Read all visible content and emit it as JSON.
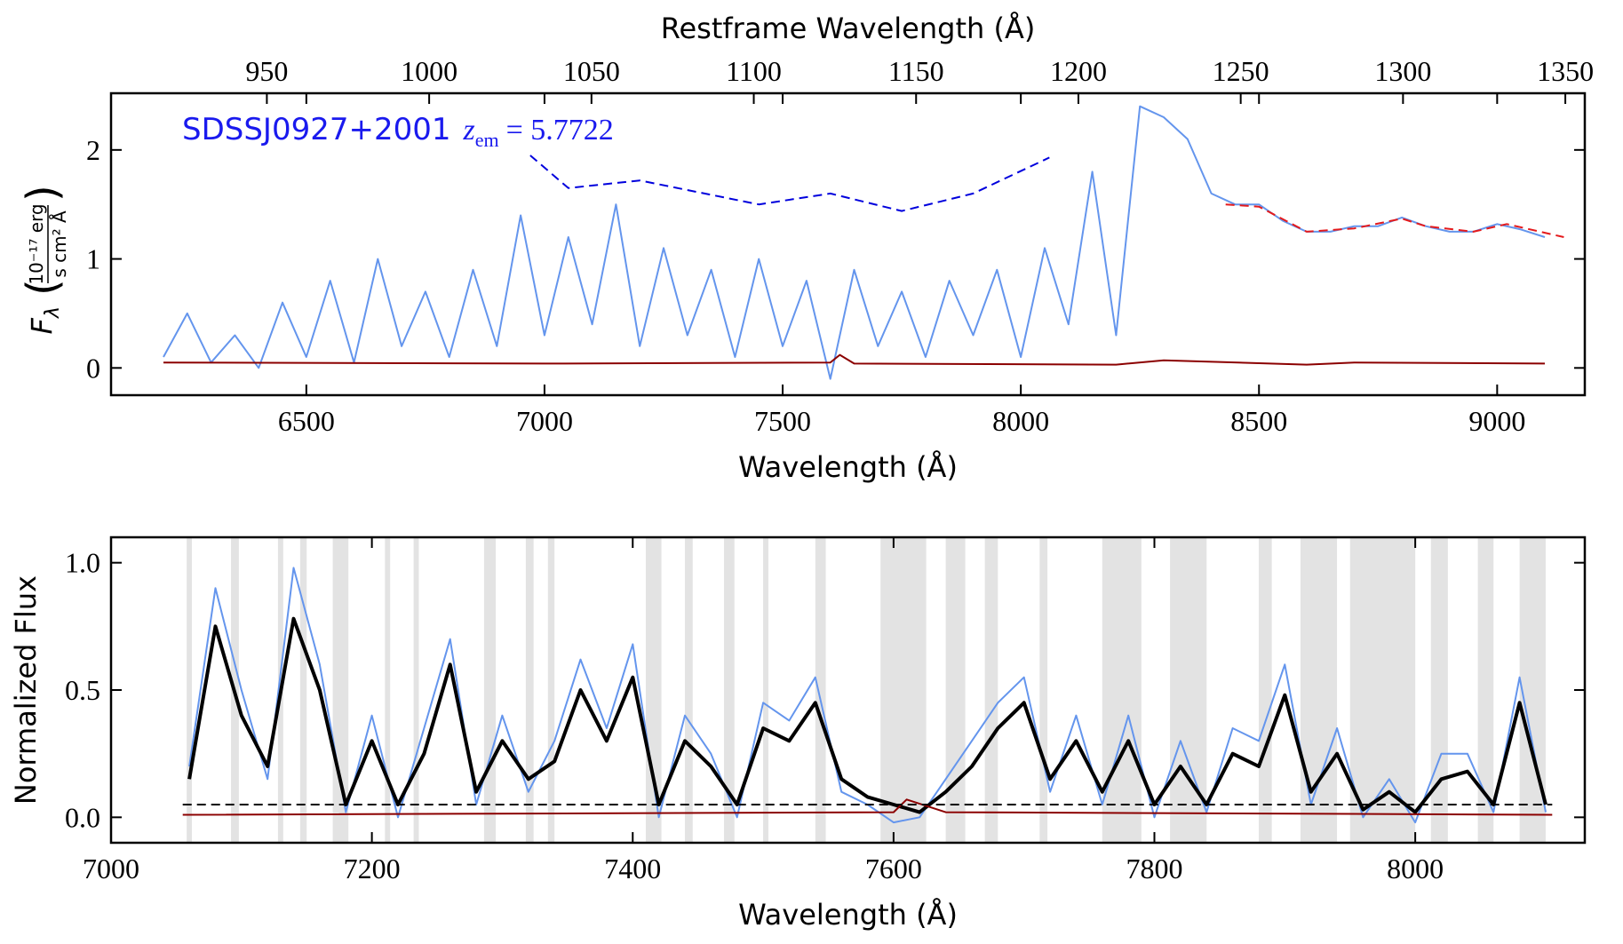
{
  "chart_data": [
    {
      "type": "line",
      "x_label": "Wavelength (Å)",
      "x2_label": "Restframe Wavelength (Å)",
      "y_label": {
        "symbol": "F",
        "sub": "λ",
        "numerator": "10⁻¹⁷ erg",
        "denominator": "s cm² Å"
      },
      "annotation": {
        "text": "SDSSJ0927+2001",
        "var": "z",
        "sub": "em",
        "eq": "= 5.7722"
      },
      "xlim": [
        6090,
        9184
      ],
      "ylim": [
        -0.25,
        2.52
      ],
      "xticks": [
        6500,
        7000,
        7500,
        8000,
        8500,
        9000
      ],
      "x2lim": [
        902,
        1356
      ],
      "x2ticks": [
        950,
        1000,
        1050,
        1100,
        1150,
        1200,
        1250,
        1300,
        1350
      ],
      "yticks": [
        0,
        1,
        2
      ],
      "series": [
        {
          "name": "flux",
          "color": "#6495ed",
          "dash": false,
          "x": [
            6200,
            6250,
            6300,
            6350,
            6400,
            6450,
            6500,
            6550,
            6600,
            6650,
            6700,
            6750,
            6800,
            6850,
            6900,
            6950,
            7000,
            7050,
            7100,
            7150,
            7200,
            7250,
            7300,
            7350,
            7400,
            7450,
            7500,
            7550,
            7600,
            7650,
            7700,
            7750,
            7800,
            7850,
            7900,
            7950,
            8000,
            8050,
            8100,
            8150,
            8200,
            8250,
            8300,
            8350,
            8400,
            8450,
            8500,
            8550,
            8600,
            8650,
            8700,
            8750,
            8800,
            8850,
            8900,
            8950,
            9000,
            9050,
            9100
          ],
          "values": [
            0.1,
            0.5,
            0.05,
            0.3,
            0.0,
            0.6,
            0.1,
            0.8,
            0.05,
            1.0,
            0.2,
            0.7,
            0.1,
            0.9,
            0.2,
            1.4,
            0.3,
            1.2,
            0.4,
            1.5,
            0.2,
            1.1,
            0.3,
            0.9,
            0.1,
            1.0,
            0.2,
            0.8,
            -0.1,
            0.9,
            0.2,
            0.7,
            0.1,
            0.8,
            0.3,
            0.9,
            0.1,
            1.1,
            0.4,
            1.8,
            0.3,
            2.4,
            2.3,
            2.1,
            1.6,
            1.5,
            1.5,
            1.35,
            1.25,
            1.25,
            1.3,
            1.3,
            1.38,
            1.3,
            1.25,
            1.25,
            1.32,
            1.27,
            1.2
          ]
        },
        {
          "name": "error",
          "color": "#8b0000",
          "dash": false,
          "x": [
            6200,
            7000,
            7600,
            7620,
            7650,
            8200,
            8300,
            8600,
            8700,
            9100
          ],
          "values": [
            0.05,
            0.04,
            0.05,
            0.12,
            0.04,
            0.03,
            0.07,
            0.03,
            0.05,
            0.04
          ]
        },
        {
          "name": "continuum",
          "color": "#e41a1c",
          "dash": true,
          "x": [
            8430,
            8500,
            8600,
            8700,
            8800,
            8850,
            8950,
            9020,
            9140
          ],
          "values": [
            1.5,
            1.48,
            1.25,
            1.28,
            1.37,
            1.3,
            1.25,
            1.32,
            1.2
          ]
        },
        {
          "name": "extrapolated",
          "color": "#0000dd",
          "dash": true,
          "x": [
            6970,
            7050,
            7200,
            7450,
            7600,
            7750,
            7900,
            8060
          ],
          "values": [
            1.95,
            1.65,
            1.72,
            1.5,
            1.6,
            1.44,
            1.6,
            1.93
          ]
        }
      ]
    },
    {
      "type": "line",
      "x_label": "Wavelength (Å)",
      "y_label": "Normalized Flux",
      "xlim": [
        7000,
        8130
      ],
      "ylim": [
        -0.1,
        1.1
      ],
      "xticks": [
        7000,
        7200,
        7400,
        7600,
        7800,
        8000
      ],
      "yticks": [
        {
          "value": 0,
          "label": "0.0"
        },
        {
          "value": 0.5,
          "label": "0.5"
        },
        {
          "value": 1,
          "label": "1.0"
        }
      ],
      "masked_regions": [
        [
          7058,
          7062
        ],
        [
          7092,
          7098
        ],
        [
          7128,
          7132
        ],
        [
          7145,
          7150
        ],
        [
          7170,
          7182
        ],
        [
          7210,
          7214
        ],
        [
          7232,
          7236
        ],
        [
          7286,
          7295
        ],
        [
          7318,
          7324
        ],
        [
          7335,
          7340
        ],
        [
          7410,
          7422
        ],
        [
          7440,
          7446
        ],
        [
          7470,
          7478
        ],
        [
          7500,
          7504
        ],
        [
          7540,
          7548
        ],
        [
          7590,
          7625
        ],
        [
          7640,
          7655
        ],
        [
          7670,
          7680
        ],
        [
          7712,
          7718
        ],
        [
          7760,
          7790
        ],
        [
          7812,
          7840
        ],
        [
          7880,
          7890
        ],
        [
          7912,
          7940
        ],
        [
          7950,
          8000
        ],
        [
          8012,
          8025
        ],
        [
          8048,
          8060
        ],
        [
          8080,
          8100
        ]
      ],
      "series": [
        {
          "name": "flux",
          "color": "#6495ed",
          "dash": false,
          "width": 2,
          "x": [
            7060,
            7080,
            7100,
            7120,
            7140,
            7160,
            7180,
            7200,
            7220,
            7240,
            7260,
            7280,
            7300,
            7320,
            7340,
            7360,
            7380,
            7400,
            7420,
            7440,
            7460,
            7480,
            7500,
            7520,
            7540,
            7560,
            7580,
            7600,
            7620,
            7640,
            7660,
            7680,
            7700,
            7720,
            7740,
            7760,
            7780,
            7800,
            7820,
            7840,
            7860,
            7880,
            7900,
            7920,
            7940,
            7960,
            7980,
            8000,
            8020,
            8040,
            8060,
            8080,
            8100
          ],
          "values": [
            0.2,
            0.9,
            0.5,
            0.15,
            0.98,
            0.6,
            0.02,
            0.4,
            0.0,
            0.35,
            0.7,
            0.05,
            0.4,
            0.1,
            0.3,
            0.62,
            0.35,
            0.68,
            0.0,
            0.4,
            0.25,
            0.0,
            0.45,
            0.38,
            0.55,
            0.1,
            0.05,
            -0.02,
            0.0,
            0.15,
            0.3,
            0.45,
            0.55,
            0.1,
            0.4,
            0.05,
            0.4,
            0.0,
            0.3,
            0.02,
            0.35,
            0.3,
            0.6,
            0.05,
            0.35,
            0.0,
            0.15,
            -0.02,
            0.25,
            0.25,
            0.02,
            0.55,
            0.02
          ]
        },
        {
          "name": "binned",
          "color": "#000000",
          "dash": false,
          "width": 4,
          "x": [
            7060,
            7080,
            7100,
            7120,
            7140,
            7160,
            7180,
            7200,
            7220,
            7240,
            7260,
            7280,
            7300,
            7320,
            7340,
            7360,
            7380,
            7400,
            7420,
            7440,
            7460,
            7480,
            7500,
            7520,
            7540,
            7560,
            7580,
            7600,
            7620,
            7640,
            7660,
            7680,
            7700,
            7720,
            7740,
            7760,
            7780,
            7800,
            7820,
            7840,
            7860,
            7880,
            7900,
            7920,
            7940,
            7960,
            7980,
            8000,
            8020,
            8040,
            8060,
            8080,
            8100
          ],
          "values": [
            0.15,
            0.75,
            0.4,
            0.2,
            0.78,
            0.5,
            0.05,
            0.3,
            0.05,
            0.25,
            0.6,
            0.1,
            0.3,
            0.15,
            0.22,
            0.5,
            0.3,
            0.55,
            0.05,
            0.3,
            0.2,
            0.05,
            0.35,
            0.3,
            0.45,
            0.15,
            0.08,
            0.05,
            0.02,
            0.1,
            0.2,
            0.35,
            0.45,
            0.15,
            0.3,
            0.1,
            0.3,
            0.05,
            0.2,
            0.05,
            0.25,
            0.2,
            0.48,
            0.1,
            0.25,
            0.03,
            0.1,
            0.02,
            0.15,
            0.18,
            0.05,
            0.45,
            0.05
          ]
        },
        {
          "name": "error",
          "color": "#8b0000",
          "dash": false,
          "width": 2,
          "x": [
            7055,
            7600,
            7610,
            7640,
            8105
          ],
          "values": [
            0.01,
            0.02,
            0.07,
            0.02,
            0.01
          ]
        },
        {
          "name": "threshold",
          "color": "#000000",
          "dash": true,
          "width": 2,
          "x": [
            7055,
            8105
          ],
          "values": [
            0.05,
            0.05
          ]
        }
      ]
    }
  ]
}
